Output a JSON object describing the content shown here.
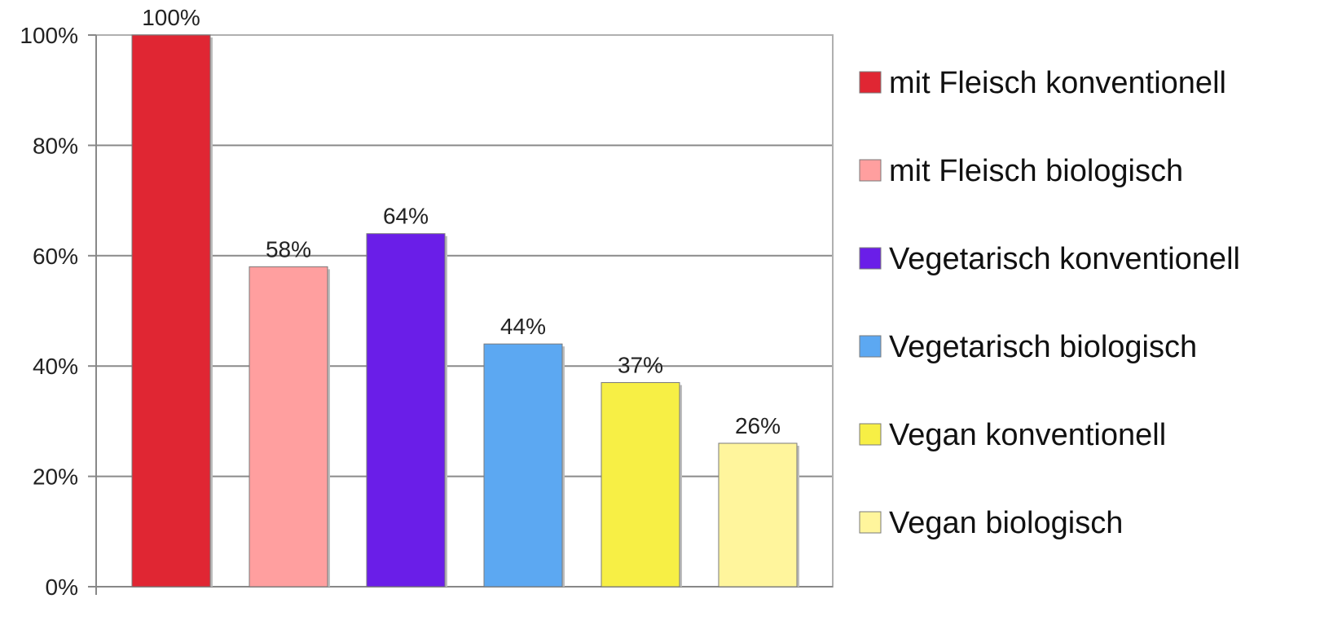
{
  "chart_data": {
    "type": "bar",
    "title": "",
    "xlabel": "",
    "ylabel": "",
    "categories": [
      "mit Fleisch konventionell",
      "mit Fleisch biologisch",
      "Vegetarisch konventionell",
      "Vegetarisch biologisch",
      "Vegan konventionell",
      "Vegan biologisch"
    ],
    "values": [
      100,
      58,
      64,
      44,
      37,
      26
    ],
    "data_labels": [
      "100%",
      "58%",
      "64%",
      "44%",
      "37%",
      "26%"
    ],
    "colors": [
      "#e02633",
      "#ff9f9f",
      "#6a1ee8",
      "#5ca8f2",
      "#f7ef45",
      "#fff59c"
    ],
    "ylim": [
      0,
      100
    ],
    "yticks": [
      0,
      20,
      40,
      60,
      80,
      100
    ],
    "ytick_labels": [
      "0%",
      "20%",
      "40%",
      "60%",
      "80%",
      "100%"
    ],
    "grid": true,
    "legend_position": "right"
  }
}
